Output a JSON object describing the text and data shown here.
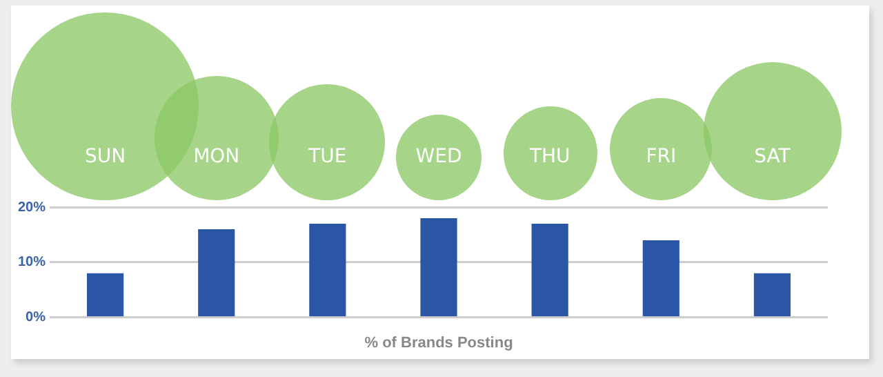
{
  "chart_data": {
    "type": "bar",
    "xlabel": "% of Brands Posting",
    "categories": [
      "SUN",
      "MON",
      "TUE",
      "WED",
      "THU",
      "FRI",
      "SAT"
    ],
    "series": [
      {
        "color": "#2a56a5",
        "values": [
          8,
          16,
          17,
          18,
          17,
          14,
          8
        ]
      }
    ],
    "ylim": [
      0,
      20
    ],
    "yticks": [
      {
        "value": 0,
        "label": "0%"
      },
      {
        "value": 10,
        "label": "10%"
      },
      {
        "value": 20,
        "label": "20%"
      }
    ],
    "grid": "y",
    "legend": false
  }
}
